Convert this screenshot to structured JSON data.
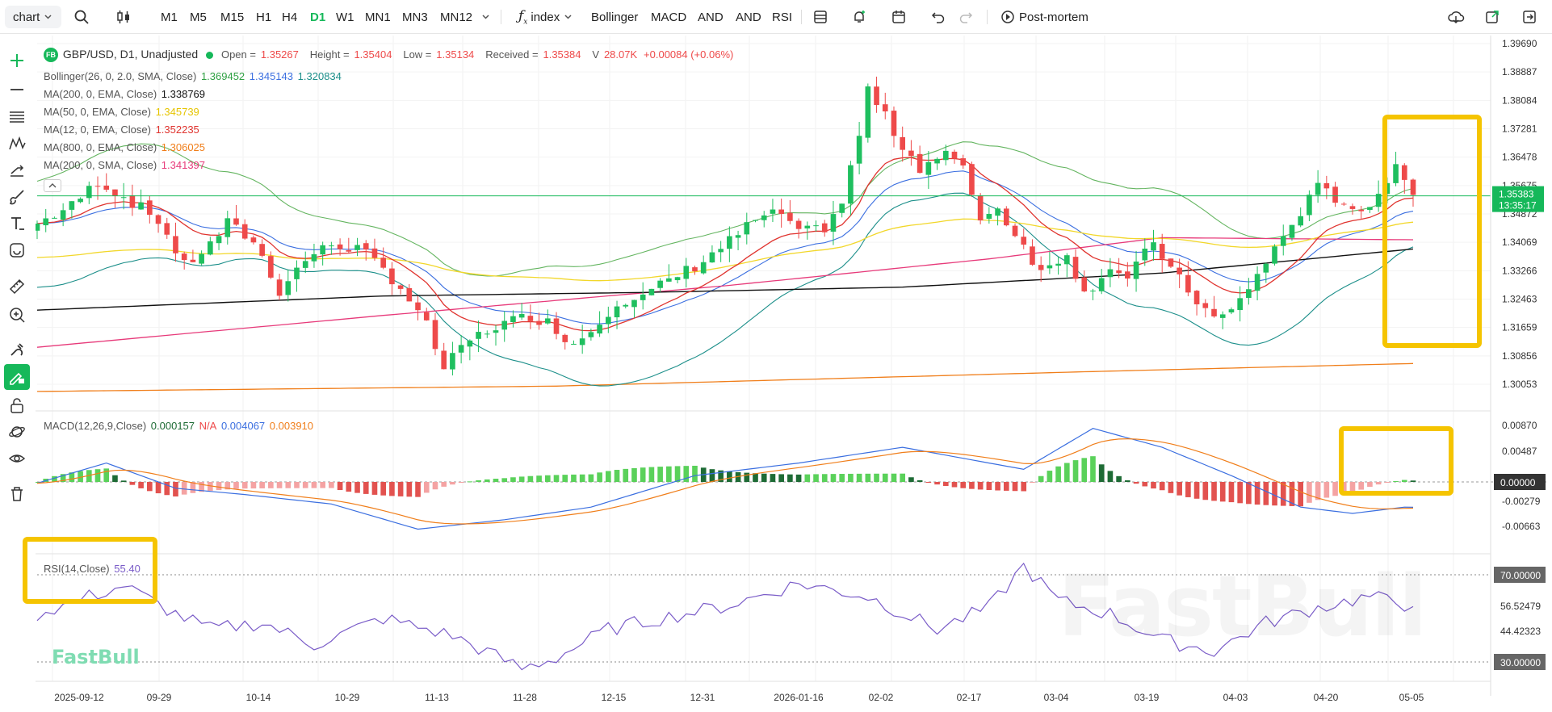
{
  "toolbar": {
    "symbol_btn": "chart",
    "timeframes": [
      "M1",
      "M5",
      "M15",
      "H1",
      "H4",
      "D1",
      "W1",
      "MN1",
      "MN3",
      "MN12"
    ],
    "active_timeframe": "D1",
    "indicator_btn": "index",
    "indicators": [
      "Bollinger",
      "MACD",
      "AND",
      "AND",
      "RSI"
    ],
    "post_mortem": "Post-mortem"
  },
  "legend": {
    "badge": "FB",
    "title": "GBP/USD, D1, Unadjusted",
    "open_label": "Open =",
    "open": "1.35267",
    "high_label": "Height =",
    "high": "1.35404",
    "low_label": "Low =",
    "low": "1.35134",
    "received_label": "Received =",
    "received": "1.35384",
    "volume_label": "V",
    "volume": "28.07K",
    "change": "+0.00084 (+0.06%)",
    "bollinger_label": "Bollinger(26, 0, 2.0, SMA, Close)",
    "bollinger_upper": "1.369452",
    "bollinger_mid": "1.345143",
    "bollinger_lower": "1.320834",
    "ma_rows": [
      {
        "label": "MA(200, 0, EMA, Close)",
        "value": "1.338769",
        "color": "#111111"
      },
      {
        "label": "MA(50, 0, EMA, Close)",
        "value": "1.345739",
        "color": "#f2d72a"
      },
      {
        "label": "MA(12, 0, EMA, Close)",
        "value": "1.352235",
        "color": "#e0342f"
      },
      {
        "label": "MA(800, 0, EMA, Close)",
        "value": "1.306025",
        "color": "#f07e1a"
      },
      {
        "label": "MA(200, 0, SMA, Close)",
        "value": "1.341397",
        "color": "#e73a7a"
      }
    ]
  },
  "macd": {
    "label": "MACD(12,26,9,Close)",
    "v1": "0.000157",
    "v2": "N/A",
    "v3": "0.004067",
    "v4": "0.003910"
  },
  "rsi": {
    "label": "RSI(14,Close)",
    "value": "55.40"
  },
  "price_axis": {
    "ticks": [
      "1.39690",
      "1.38887",
      "1.38084",
      "1.37281",
      "1.36478",
      "1.35675",
      "1.34872",
      "1.34069",
      "1.33266",
      "1.32463",
      "1.31659",
      "1.30856",
      "1.30053"
    ],
    "last_price": "1.35383",
    "countdown": "13:35:17"
  },
  "macd_axis": {
    "ticks": [
      "0.00870",
      "0.00487",
      "0.00000",
      "-0.00279",
      "-0.00663"
    ],
    "zero_label": "0.00000"
  },
  "rsi_axis": {
    "ticks": [
      "70.00000",
      "56.52479",
      "44.42323",
      "30.00000"
    ]
  },
  "time_axis": {
    "labels": [
      "2025-09-12",
      "09-29",
      "10-14",
      "10-29",
      "11-13",
      "11-28",
      "12-15",
      "12-31",
      "2026-01-16",
      "02-02",
      "02-17",
      "03-04",
      "03-19",
      "04-03",
      "04-20",
      "05-05"
    ]
  },
  "watermark": {
    "main": "FastBull",
    "small": "FastBull"
  },
  "colors": {
    "up": "#1fbf5f",
    "down": "#ee4a4a",
    "accent": "#16b85a",
    "highlight": "#f5c400"
  }
}
